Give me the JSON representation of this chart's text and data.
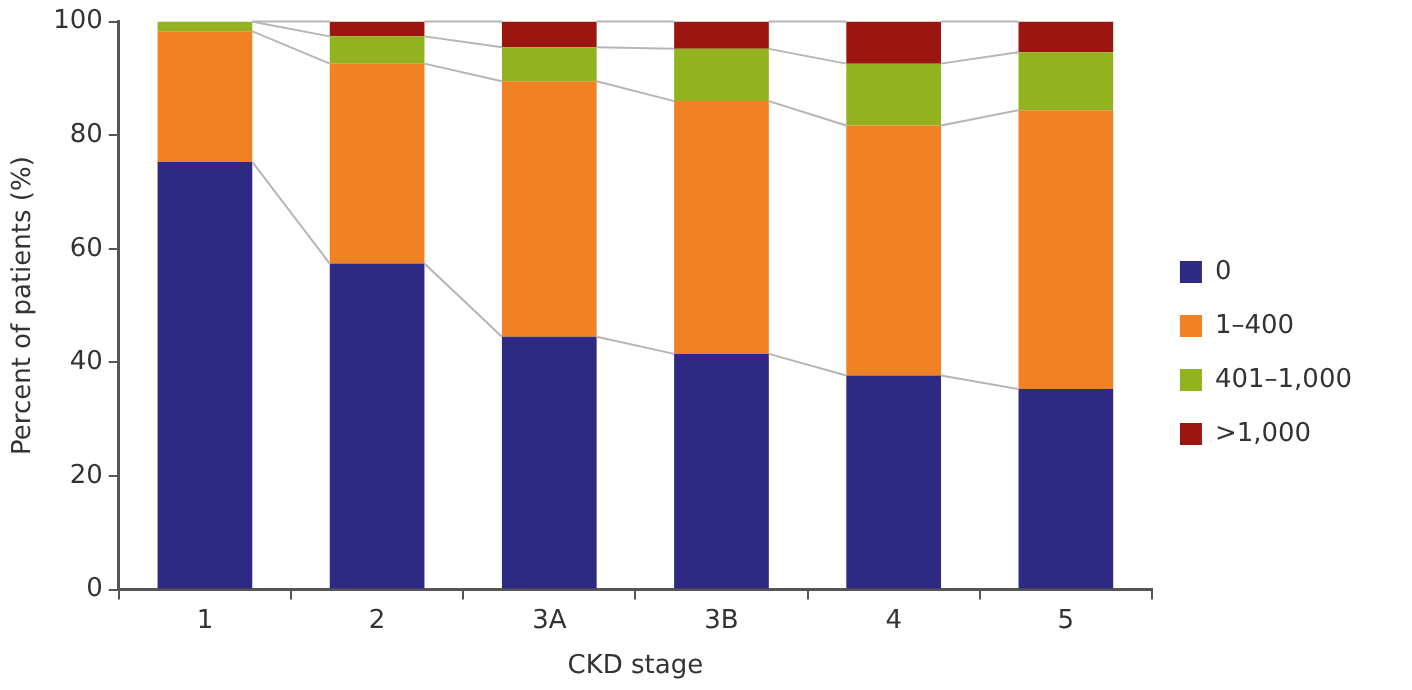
{
  "chart_data": {
    "type": "bar",
    "xlabel": "CKD stage",
    "ylabel": "Percent of patients (%)",
    "categories": [
      "1",
      "2",
      "3A",
      "3B",
      "4",
      "5"
    ],
    "stacked": true,
    "ylim": [
      0,
      100
    ],
    "yticks": [
      0,
      20,
      40,
      60,
      80,
      100
    ],
    "grid": false,
    "legend": "right",
    "series": [
      {
        "name": "0",
        "color": "#2e2a84",
        "values": [
          75.3,
          57.4,
          44.5,
          41.5,
          37.7,
          35.3
        ]
      },
      {
        "name": "1–400",
        "color": "#f08124",
        "values": [
          23.0,
          35.2,
          45.0,
          44.5,
          44.0,
          49.1
        ]
      },
      {
        "name": "401–1,000",
        "color": "#92b31f",
        "values": [
          1.7,
          4.8,
          6.0,
          9.2,
          10.9,
          10.2
        ]
      },
      {
        "name": ">1,000",
        "color": "#9b1511",
        "values": [
          0,
          2.6,
          4.5,
          4.8,
          7.4,
          5.4
        ]
      }
    ]
  }
}
